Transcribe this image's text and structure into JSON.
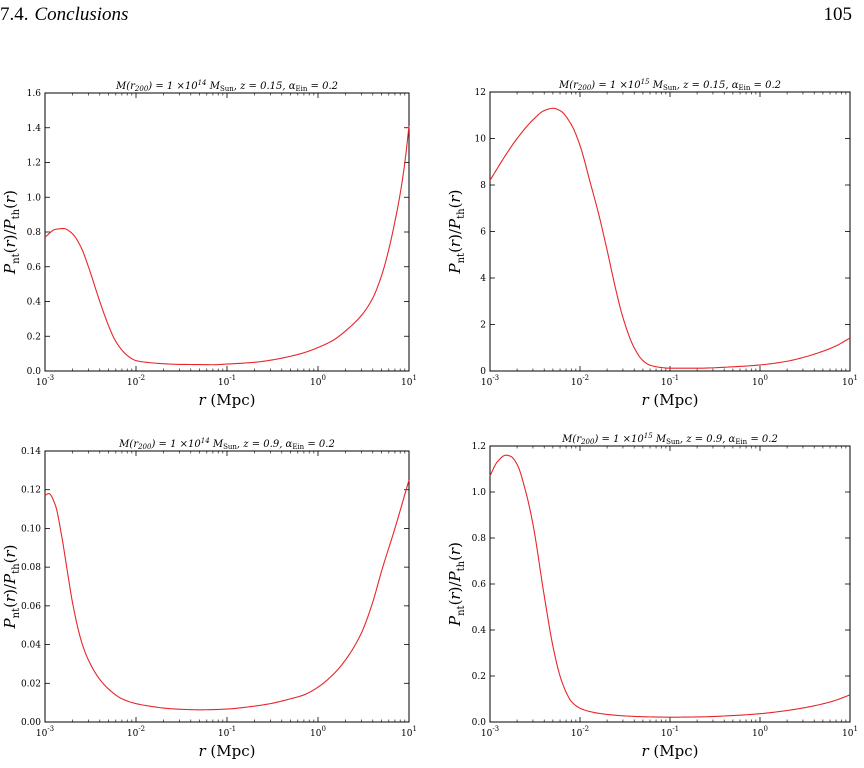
{
  "header": {
    "section_number": "7.4.",
    "section_title": "Conclusions",
    "page_number": "105"
  },
  "chart_data": [
    {
      "type": "line",
      "title": "M(r200) = 1×10^14 M_Sun, z=0.15, α_Ein = 0.2",
      "title_parts": {
        "mass_coeff": "1",
        "mass_exp": "14",
        "z": "0.15",
        "alpha": "0.2"
      },
      "xlabel": "r (Mpc)",
      "ylabel": "P_nt(r)/P_th(r)",
      "xscale": "log",
      "xlim": [
        0.001,
        10
      ],
      "ylim": [
        0,
        1.6
      ],
      "yticks": [
        "0.0",
        "0.2",
        "0.4",
        "0.6",
        "0.8",
        "1.0",
        "1.2",
        "1.4",
        "1.6"
      ],
      "xticks": [
        {
          "base": "10",
          "exp": "-3"
        },
        {
          "base": "10",
          "exp": "-2"
        },
        {
          "base": "10",
          "exp": "-1"
        },
        {
          "base": "10",
          "exp": "0"
        },
        {
          "base": "10",
          "exp": "1"
        }
      ],
      "line_color": "#e8262a",
      "series": [
        {
          "x": [
            0.001,
            0.0013,
            0.0016,
            0.002,
            0.0025,
            0.003,
            0.004,
            0.005,
            0.006,
            0.008,
            0.01,
            0.013,
            0.02,
            0.03,
            0.05,
            0.07,
            0.1,
            0.2,
            0.3,
            0.5,
            0.7,
            1,
            1.5,
            2,
            3,
            4,
            5,
            6,
            7,
            8,
            9,
            10
          ],
          "y": [
            0.77,
            0.815,
            0.82,
            0.79,
            0.71,
            0.6,
            0.4,
            0.26,
            0.17,
            0.09,
            0.06,
            0.05,
            0.042,
            0.038,
            0.037,
            0.036,
            0.04,
            0.05,
            0.062,
            0.085,
            0.105,
            0.135,
            0.18,
            0.23,
            0.32,
            0.42,
            0.55,
            0.7,
            0.86,
            1.02,
            1.2,
            1.41
          ]
        }
      ]
    },
    {
      "type": "line",
      "title": "M(r200) = 1×10^15 M_Sun, z=0.15, α_Ein = 0.2",
      "title_parts": {
        "mass_coeff": "1",
        "mass_exp": "15",
        "z": "0.15",
        "alpha": "0.2"
      },
      "xlabel": "r (Mpc)",
      "ylabel": "P_nt(r)/P_th(r)",
      "xscale": "log",
      "xlim": [
        0.001,
        10
      ],
      "ylim": [
        0,
        12
      ],
      "yticks": [
        "0",
        "2",
        "4",
        "6",
        "8",
        "10",
        "12"
      ],
      "xticks": [
        {
          "base": "10",
          "exp": "-3"
        },
        {
          "base": "10",
          "exp": "-2"
        },
        {
          "base": "10",
          "exp": "-1"
        },
        {
          "base": "10",
          "exp": "0"
        },
        {
          "base": "10",
          "exp": "1"
        }
      ],
      "line_color": "#e8262a",
      "series": [
        {
          "x": [
            0.001,
            0.0015,
            0.002,
            0.003,
            0.004,
            0.005,
            0.006,
            0.008,
            0.01,
            0.013,
            0.016,
            0.02,
            0.025,
            0.03,
            0.04,
            0.05,
            0.06,
            0.08,
            0.1,
            0.2,
            0.5,
            1,
            2,
            3,
            5,
            7,
            10
          ],
          "y": [
            8.2,
            9.3,
            10.0,
            10.8,
            11.2,
            11.3,
            11.2,
            10.6,
            9.7,
            8.1,
            6.8,
            5.2,
            3.5,
            2.3,
            1.0,
            0.45,
            0.25,
            0.15,
            0.12,
            0.12,
            0.18,
            0.26,
            0.42,
            0.58,
            0.85,
            1.08,
            1.42
          ]
        }
      ]
    },
    {
      "type": "line",
      "title": "M(r200) = 1×10^14 M_Sun, z=0.9, α_Ein = 0.2",
      "title_parts": {
        "mass_coeff": "1",
        "mass_exp": "14",
        "z": "0.9",
        "alpha": "0.2"
      },
      "xlabel": "r (Mpc)",
      "ylabel": "P_nt(r)/P_th(r)",
      "xscale": "log",
      "xlim": [
        0.001,
        10
      ],
      "ylim": [
        0,
        0.14
      ],
      "yticks": [
        "0.00",
        "0.02",
        "0.04",
        "0.06",
        "0.08",
        "0.10",
        "0.12",
        "0.14"
      ],
      "xticks": [
        {
          "base": "10",
          "exp": "-3"
        },
        {
          "base": "10",
          "exp": "-2"
        },
        {
          "base": "10",
          "exp": "-1"
        },
        {
          "base": "10",
          "exp": "0"
        },
        {
          "base": "10",
          "exp": "1"
        }
      ],
      "line_color": "#e8262a",
      "series": [
        {
          "x": [
            0.001,
            0.0011,
            0.0013,
            0.0015,
            0.0018,
            0.002,
            0.0025,
            0.003,
            0.004,
            0.005,
            0.007,
            0.01,
            0.015,
            0.02,
            0.03,
            0.05,
            0.07,
            0.1,
            0.2,
            0.3,
            0.5,
            0.7,
            1,
            1.5,
            2,
            3,
            4,
            5,
            7,
            10
          ],
          "y": [
            0.117,
            0.118,
            0.112,
            0.098,
            0.075,
            0.062,
            0.042,
            0.032,
            0.022,
            0.017,
            0.012,
            0.0095,
            0.008,
            0.0072,
            0.0066,
            0.0063,
            0.0064,
            0.0067,
            0.0082,
            0.0095,
            0.012,
            0.014,
            0.018,
            0.025,
            0.032,
            0.046,
            0.062,
            0.078,
            0.1,
            0.125
          ]
        }
      ]
    },
    {
      "type": "line",
      "title": "M(r200) = 1×10^15 M_Sun, z=0.9, α_Ein = 0.2",
      "title_parts": {
        "mass_coeff": "1",
        "mass_exp": "15",
        "z": "0.9",
        "alpha": "0.2"
      },
      "xlabel": "r (Mpc)",
      "ylabel": "P_nt(r)/P_th(r)",
      "xscale": "log",
      "xlim": [
        0.001,
        10
      ],
      "ylim": [
        0,
        1.2
      ],
      "yticks": [
        "0.0",
        "0.2",
        "0.4",
        "0.6",
        "0.8",
        "1.0",
        "1.2"
      ],
      "xticks": [
        {
          "base": "10",
          "exp": "-3"
        },
        {
          "base": "10",
          "exp": "-2"
        },
        {
          "base": "10",
          "exp": "-1"
        },
        {
          "base": "10",
          "exp": "0"
        },
        {
          "base": "10",
          "exp": "1"
        }
      ],
      "line_color": "#e8262a",
      "series": [
        {
          "x": [
            0.001,
            0.0012,
            0.0015,
            0.0017,
            0.002,
            0.0025,
            0.003,
            0.004,
            0.005,
            0.006,
            0.007,
            0.008,
            0.01,
            0.013,
            0.02,
            0.03,
            0.05,
            0.1,
            0.2,
            0.5,
            1,
            2,
            3,
            5,
            7,
            10
          ],
          "y": [
            1.07,
            1.13,
            1.16,
            1.155,
            1.12,
            1.0,
            0.86,
            0.55,
            0.33,
            0.2,
            0.13,
            0.09,
            0.06,
            0.045,
            0.033,
            0.027,
            0.023,
            0.021,
            0.022,
            0.028,
            0.036,
            0.05,
            0.061,
            0.079,
            0.095,
            0.118
          ]
        }
      ]
    }
  ]
}
